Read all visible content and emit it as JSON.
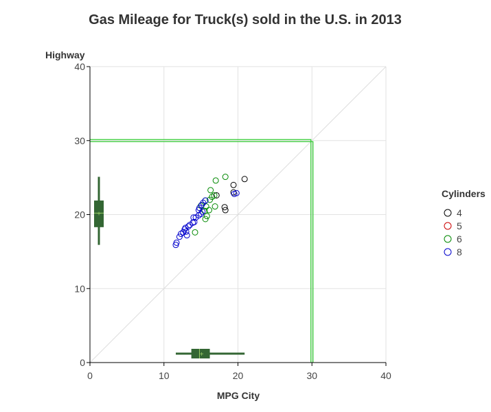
{
  "chart_data": {
    "type": "scatter",
    "title": "Gas Mileage for Truck(s) sold in the U.S. in 2013",
    "xlabel": "MPG City",
    "ylabel": "Highway",
    "xlim": [
      0,
      40
    ],
    "ylim": [
      0,
      40
    ],
    "x_ticks": [
      "0",
      "10",
      "20",
      "30",
      "40"
    ],
    "y_ticks": [
      "0",
      "10",
      "20",
      "30",
      "40"
    ],
    "grid": true,
    "reference_line": {
      "from": [
        0,
        0
      ],
      "to": [
        40,
        40
      ],
      "color": "#dddddd"
    },
    "target_lines": {
      "x": 30,
      "y": 30,
      "color": "#33cc33"
    },
    "legend": {
      "title": "Cylinders",
      "placement": "right",
      "entries": [
        {
          "label": "4",
          "color": "#000000"
        },
        {
          "label": "5",
          "color": "#cc0000"
        },
        {
          "label": "6",
          "color": "#008800"
        },
        {
          "label": "8",
          "color": "#0000cc"
        }
      ]
    },
    "series": [
      {
        "name": "4",
        "color": "#000000",
        "points": [
          [
            19.4,
            24.0
          ],
          [
            20.9,
            24.8
          ],
          [
            17.1,
            22.6
          ],
          [
            18.2,
            21.0
          ],
          [
            18.3,
            20.6
          ],
          [
            19.4,
            23.0
          ]
        ]
      },
      {
        "name": "5",
        "color": "#cc0000",
        "points": []
      },
      {
        "name": "6",
        "color": "#008800",
        "points": [
          [
            18.3,
            25.1
          ],
          [
            17.0,
            24.6
          ],
          [
            16.3,
            23.3
          ],
          [
            16.5,
            22.4
          ],
          [
            16.8,
            22.6
          ],
          [
            16.2,
            22.0
          ],
          [
            15.6,
            21.9
          ],
          [
            15.7,
            21.1
          ],
          [
            15.5,
            20.5
          ],
          [
            16.1,
            20.6
          ],
          [
            16.9,
            21.1
          ],
          [
            15.8,
            19.8
          ],
          [
            15.6,
            19.4
          ],
          [
            14.2,
            17.6
          ],
          [
            15.0,
            21.2
          ]
        ]
      },
      {
        "name": "8",
        "color": "#0000cc",
        "points": [
          [
            19.8,
            22.9
          ],
          [
            19.5,
            22.8
          ],
          [
            15.6,
            21.9
          ],
          [
            15.3,
            21.6
          ],
          [
            15.1,
            21.3
          ],
          [
            14.8,
            20.9
          ],
          [
            14.7,
            20.6
          ],
          [
            15.2,
            20.4
          ],
          [
            15.0,
            20.1
          ],
          [
            14.7,
            19.9
          ],
          [
            14.3,
            19.6
          ],
          [
            14.0,
            19.6
          ],
          [
            14.1,
            19.0
          ],
          [
            13.9,
            18.9
          ],
          [
            13.5,
            18.6
          ],
          [
            13.3,
            18.4
          ],
          [
            12.9,
            18.2
          ],
          [
            12.8,
            18.0
          ],
          [
            13.0,
            17.7
          ],
          [
            12.6,
            17.6
          ],
          [
            12.3,
            17.4
          ],
          [
            13.1,
            17.2
          ],
          [
            12.1,
            17.0
          ],
          [
            11.7,
            16.2
          ],
          [
            11.6,
            15.9
          ]
        ]
      }
    ],
    "x_marginal_box": {
      "min": 11.6,
      "q1": 13.7,
      "median": 14.8,
      "mean": 15.1,
      "q3": 16.2,
      "max": 20.9
    },
    "y_marginal_box": {
      "min": 15.9,
      "q1": 18.3,
      "median": 20.2,
      "mean": 20.2,
      "q3": 21.9,
      "max": 25.1
    },
    "box_color": "#336633"
  }
}
